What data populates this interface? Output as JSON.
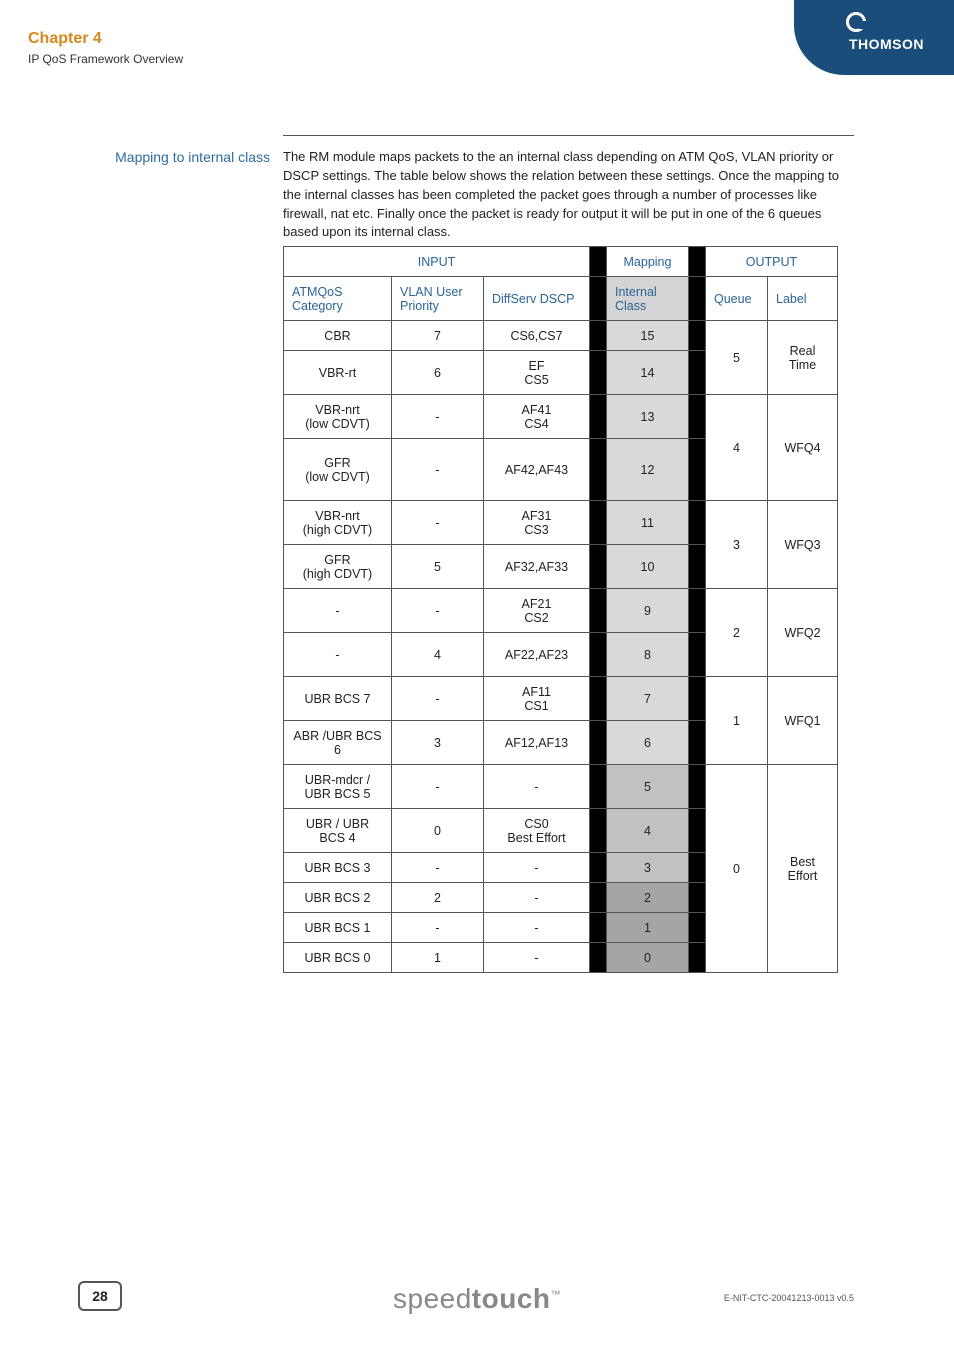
{
  "header": {
    "chapter": "Chapter 4",
    "subtitle": "IP QoS Framework Overview",
    "brand": "THOMSON"
  },
  "section": {
    "side_heading": "Mapping to internal class",
    "body": "The RM module maps packets to the an internal class depending on ATM QoS, VLAN priority or DSCP settings. The table below shows the relation between these settings. Once the mapping to the internal classes has been completed the packet goes through a number of processes like firewall, nat etc. Finally once the packet is ready for output it will be put in one of the 6 queues based upon its internal class."
  },
  "table": {
    "group_headers": {
      "input": "INPUT",
      "mapping": "Mapping",
      "output": "OUTPUT"
    },
    "col_headers": {
      "atm": "ATMQoS Category",
      "vlan": "VLAN User Priority",
      "dscp": "DiffServ DSCP",
      "iclass": "Internal Class",
      "queue": "Queue",
      "label": "Label"
    },
    "groups": [
      {
        "queue": "5",
        "label": "Real Time",
        "rows": [
          {
            "atm": "CBR",
            "vlan": "7",
            "dscp": "CS6,CS7",
            "ic": "15",
            "rh": 1
          },
          {
            "atm": "VBR-rt",
            "vlan": "6",
            "dscp": "EF\nCS5",
            "ic": "14",
            "rh": 2
          }
        ]
      },
      {
        "queue": "4",
        "label": "WFQ4",
        "rows": [
          {
            "atm": "VBR-nrt\n(low CDVT)",
            "vlan": "-",
            "dscp": "AF41\nCS4",
            "ic": "13",
            "rh": 2
          },
          {
            "atm": "GFR\n(low CDVT)",
            "vlan": "-",
            "dscp": "AF42,AF43",
            "ic": "12",
            "rh": 3
          }
        ]
      },
      {
        "queue": "3",
        "label": "WFQ3",
        "rows": [
          {
            "atm": "VBR-nrt\n(high CDVT)",
            "vlan": "-",
            "dscp": "AF31\nCS3",
            "ic": "11",
            "rh": 2
          },
          {
            "atm": "GFR\n(high CDVT)",
            "vlan": "5",
            "dscp": "AF32,AF33",
            "ic": "10",
            "rh": 2
          }
        ]
      },
      {
        "queue": "2",
        "label": "WFQ2",
        "rows": [
          {
            "atm": "-",
            "vlan": "-",
            "dscp": "AF21\nCS2",
            "ic": "9",
            "rh": 2
          },
          {
            "atm": "-",
            "vlan": "4",
            "dscp": "AF22,AF23",
            "ic": "8",
            "rh": 2
          }
        ]
      },
      {
        "queue": "1",
        "label": "WFQ1",
        "rows": [
          {
            "atm": "UBR BCS 7",
            "vlan": "-",
            "dscp": "AF11\nCS1",
            "ic": "7",
            "rh": 2
          },
          {
            "atm": "ABR /UBR BCS 6",
            "vlan": "3",
            "dscp": "AF12,AF13",
            "ic": "6",
            "rh": 2
          }
        ]
      },
      {
        "queue": "0",
        "label": "Best Effort",
        "rows": [
          {
            "atm": "UBR-mdcr / UBR BCS 5",
            "vlan": "-",
            "dscp": "-",
            "ic": "5",
            "rh": 2
          },
          {
            "atm": "UBR / UBR BCS 4",
            "vlan": "0",
            "dscp": "CS0\nBest Effort",
            "ic": "4",
            "rh": 2
          },
          {
            "atm": "UBR BCS 3",
            "vlan": "-",
            "dscp": "-",
            "ic": "3",
            "rh": 1
          },
          {
            "atm": "UBR BCS 2",
            "vlan": "2",
            "dscp": "-",
            "ic": "2",
            "rh": 1
          },
          {
            "atm": "UBR BCS 1",
            "vlan": "-",
            "dscp": "-",
            "ic": "1",
            "rh": 1
          },
          {
            "atm": "UBR BCS 0",
            "vlan": "1",
            "dscp": "-",
            "ic": "0",
            "rh": 1
          }
        ]
      }
    ],
    "ic_shades": {
      "15": "shade-l",
      "14": "shade-l",
      "13": "shade-l",
      "12": "shade-l",
      "11": "shade-l",
      "10": "shade-l",
      "9": "shade-l",
      "8": "shade-l",
      "7": "shade-l",
      "6": "shade-l",
      "5": "shade-m",
      "4": "shade-m",
      "3": "shade-m",
      "2": "shade-d",
      "1": "shade-d",
      "0": "shade-d"
    },
    "row_heights": {
      "1": 30,
      "2": 44,
      "3": 62
    },
    "colors": {
      "header_text": "#2a6496",
      "border": "#555555",
      "sep_bg": "#000000"
    }
  },
  "footer": {
    "page": "28",
    "brand_light": "speed",
    "brand_bold": "touch",
    "doc_id": "E-NIT-CTC-20041213-0013 v0.5"
  }
}
